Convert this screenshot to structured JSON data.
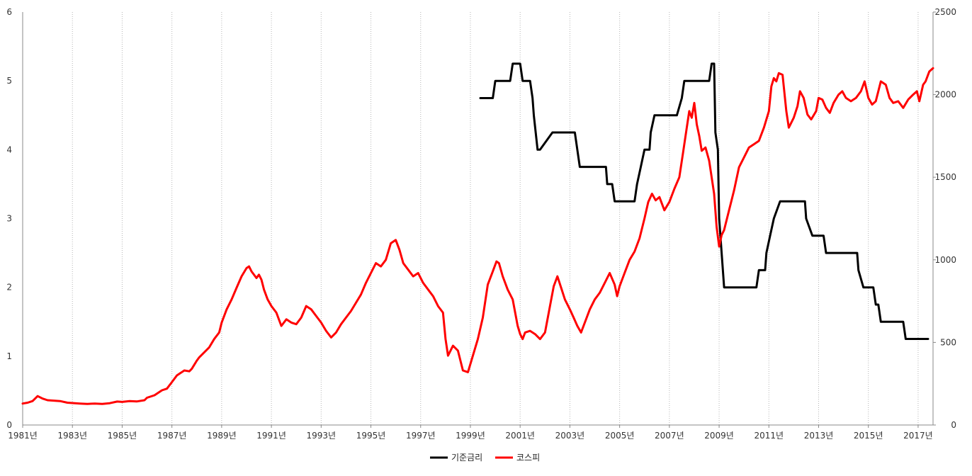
{
  "chart_data": {
    "type": "line",
    "title": "",
    "xlabel": "",
    "ylabel": "",
    "x_ticks": [
      "1981년",
      "1983년",
      "1985년",
      "1987년",
      "1989년",
      "1991년",
      "1993년",
      "1995년",
      "1997년",
      "1999년",
      "2001년",
      "2003년",
      "2005년",
      "2007년",
      "2009년",
      "2011년",
      "2013년",
      "2015년",
      "2017년"
    ],
    "y_left": {
      "min": 0,
      "max": 6,
      "ticks": [
        "0",
        "1",
        "2",
        "3",
        "4",
        "5",
        "6"
      ]
    },
    "y_right": {
      "min": 0,
      "max": 2500,
      "ticks": [
        "0",
        "500",
        "1000",
        "1500",
        "2000",
        "2500"
      ]
    },
    "grid": {
      "vertical": true,
      "horizontal": false
    },
    "legend_position": "bottom-center",
    "series": [
      {
        "name": "기준금리",
        "axis": "left",
        "color": "#000000",
        "step": true,
        "points": [
          [
            1999.4,
            4.75
          ],
          [
            1999.9,
            4.75
          ],
          [
            2000.0,
            5.0
          ],
          [
            2000.6,
            5.0
          ],
          [
            2000.7,
            5.25
          ],
          [
            2001.0,
            5.25
          ],
          [
            2001.1,
            5.0
          ],
          [
            2001.4,
            5.0
          ],
          [
            2001.5,
            4.75
          ],
          [
            2001.55,
            4.5
          ],
          [
            2001.7,
            4.0
          ],
          [
            2001.8,
            4.0
          ],
          [
            2002.3,
            4.25
          ],
          [
            2003.2,
            4.25
          ],
          [
            2003.3,
            4.0
          ],
          [
            2003.4,
            3.75
          ],
          [
            2004.45,
            3.75
          ],
          [
            2004.5,
            3.5
          ],
          [
            2004.7,
            3.5
          ],
          [
            2004.8,
            3.25
          ],
          [
            2005.6,
            3.25
          ],
          [
            2005.7,
            3.5
          ],
          [
            2005.85,
            3.75
          ],
          [
            2006.0,
            4.0
          ],
          [
            2006.2,
            4.0
          ],
          [
            2006.25,
            4.25
          ],
          [
            2006.4,
            4.5
          ],
          [
            2007.3,
            4.5
          ],
          [
            2007.5,
            4.75
          ],
          [
            2007.6,
            5.0
          ],
          [
            2008.6,
            5.0
          ],
          [
            2008.7,
            5.25
          ],
          [
            2008.8,
            5.25
          ],
          [
            2008.85,
            4.25
          ],
          [
            2008.95,
            4.0
          ],
          [
            2009.0,
            3.0
          ],
          [
            2009.1,
            2.5
          ],
          [
            2009.2,
            2.0
          ],
          [
            2010.5,
            2.0
          ],
          [
            2010.6,
            2.25
          ],
          [
            2010.85,
            2.25
          ],
          [
            2010.9,
            2.5
          ],
          [
            2011.05,
            2.75
          ],
          [
            2011.2,
            3.0
          ],
          [
            2011.45,
            3.25
          ],
          [
            2012.45,
            3.25
          ],
          [
            2012.5,
            3.0
          ],
          [
            2012.75,
            2.75
          ],
          [
            2013.2,
            2.75
          ],
          [
            2013.3,
            2.5
          ],
          [
            2014.55,
            2.5
          ],
          [
            2014.6,
            2.25
          ],
          [
            2014.8,
            2.0
          ],
          [
            2015.2,
            2.0
          ],
          [
            2015.3,
            1.75
          ],
          [
            2015.4,
            1.75
          ],
          [
            2015.5,
            1.5
          ],
          [
            2016.4,
            1.5
          ],
          [
            2016.5,
            1.25
          ],
          [
            2017.4,
            1.25
          ]
        ]
      },
      {
        "name": "코스피",
        "axis": "right",
        "color": "#ff0000",
        "step": false,
        "points": [
          [
            1981.0,
            130
          ],
          [
            1981.2,
            135
          ],
          [
            1981.4,
            145
          ],
          [
            1981.6,
            175
          ],
          [
            1981.8,
            160
          ],
          [
            1982.0,
            150
          ],
          [
            1982.2,
            148
          ],
          [
            1982.5,
            145
          ],
          [
            1982.8,
            135
          ],
          [
            1983.0,
            133
          ],
          [
            1983.3,
            130
          ],
          [
            1983.6,
            128
          ],
          [
            1983.9,
            130
          ],
          [
            1984.2,
            128
          ],
          [
            1984.5,
            132
          ],
          [
            1984.8,
            142
          ],
          [
            1985.0,
            140
          ],
          [
            1985.3,
            145
          ],
          [
            1985.6,
            143
          ],
          [
            1985.9,
            150
          ],
          [
            1986.0,
            165
          ],
          [
            1986.3,
            180
          ],
          [
            1986.6,
            210
          ],
          [
            1986.8,
            220
          ],
          [
            1987.0,
            260
          ],
          [
            1987.2,
            300
          ],
          [
            1987.5,
            330
          ],
          [
            1987.7,
            325
          ],
          [
            1987.8,
            340
          ],
          [
            1988.0,
            390
          ],
          [
            1988.1,
            410
          ],
          [
            1988.3,
            440
          ],
          [
            1988.5,
            470
          ],
          [
            1988.7,
            520
          ],
          [
            1988.9,
            560
          ],
          [
            1989.0,
            620
          ],
          [
            1989.2,
            700
          ],
          [
            1989.4,
            760
          ],
          [
            1989.6,
            830
          ],
          [
            1989.8,
            900
          ],
          [
            1990.0,
            950
          ],
          [
            1990.1,
            960
          ],
          [
            1990.2,
            930
          ],
          [
            1990.4,
            890
          ],
          [
            1990.5,
            910
          ],
          [
            1990.6,
            880
          ],
          [
            1990.7,
            820
          ],
          [
            1990.85,
            760
          ],
          [
            1991.0,
            720
          ],
          [
            1991.2,
            680
          ],
          [
            1991.4,
            600
          ],
          [
            1991.6,
            640
          ],
          [
            1991.8,
            620
          ],
          [
            1992.0,
            610
          ],
          [
            1992.2,
            650
          ],
          [
            1992.4,
            720
          ],
          [
            1992.6,
            700
          ],
          [
            1992.8,
            660
          ],
          [
            1993.0,
            620
          ],
          [
            1993.2,
            570
          ],
          [
            1993.4,
            530
          ],
          [
            1993.6,
            560
          ],
          [
            1993.8,
            610
          ],
          [
            1994.0,
            650
          ],
          [
            1994.2,
            690
          ],
          [
            1994.4,
            740
          ],
          [
            1994.6,
            790
          ],
          [
            1994.8,
            860
          ],
          [
            1995.0,
            920
          ],
          [
            1995.2,
            980
          ],
          [
            1995.4,
            960
          ],
          [
            1995.6,
            1000
          ],
          [
            1995.8,
            1100
          ],
          [
            1996.0,
            1120
          ],
          [
            1996.15,
            1060
          ],
          [
            1996.3,
            980
          ],
          [
            1996.5,
            940
          ],
          [
            1996.7,
            900
          ],
          [
            1996.9,
            920
          ],
          [
            1997.1,
            860
          ],
          [
            1997.3,
            820
          ],
          [
            1997.5,
            780
          ],
          [
            1997.7,
            720
          ],
          [
            1997.9,
            680
          ],
          [
            1998.0,
            520
          ],
          [
            1998.1,
            420
          ],
          [
            1998.3,
            480
          ],
          [
            1998.5,
            450
          ],
          [
            1998.7,
            330
          ],
          [
            1998.9,
            320
          ],
          [
            1999.1,
            420
          ],
          [
            1999.3,
            520
          ],
          [
            1999.5,
            650
          ],
          [
            1999.7,
            850
          ],
          [
            1999.9,
            930
          ],
          [
            2000.05,
            990
          ],
          [
            2000.15,
            980
          ],
          [
            2000.3,
            900
          ],
          [
            2000.5,
            820
          ],
          [
            2000.7,
            760
          ],
          [
            2000.9,
            600
          ],
          [
            2001.0,
            550
          ],
          [
            2001.1,
            520
          ],
          [
            2001.2,
            560
          ],
          [
            2001.4,
            570
          ],
          [
            2001.6,
            550
          ],
          [
            2001.8,
            520
          ],
          [
            2002.0,
            560
          ],
          [
            2002.1,
            640
          ],
          [
            2002.2,
            720
          ],
          [
            2002.35,
            840
          ],
          [
            2002.5,
            900
          ],
          [
            2002.65,
            830
          ],
          [
            2002.8,
            760
          ],
          [
            2003.0,
            700
          ],
          [
            2003.15,
            650
          ],
          [
            2003.3,
            600
          ],
          [
            2003.45,
            560
          ],
          [
            2003.6,
            620
          ],
          [
            2003.8,
            700
          ],
          [
            2004.0,
            760
          ],
          [
            2004.2,
            800
          ],
          [
            2004.4,
            860
          ],
          [
            2004.6,
            920
          ],
          [
            2004.8,
            850
          ],
          [
            2004.9,
            780
          ],
          [
            2005.0,
            840
          ],
          [
            2005.2,
            920
          ],
          [
            2005.4,
            1000
          ],
          [
            2005.6,
            1050
          ],
          [
            2005.8,
            1130
          ],
          [
            2006.0,
            1250
          ],
          [
            2006.15,
            1350
          ],
          [
            2006.3,
            1400
          ],
          [
            2006.45,
            1360
          ],
          [
            2006.6,
            1380
          ],
          [
            2006.8,
            1300
          ],
          [
            2007.0,
            1350
          ],
          [
            2007.2,
            1430
          ],
          [
            2007.4,
            1500
          ],
          [
            2007.55,
            1650
          ],
          [
            2007.7,
            1800
          ],
          [
            2007.8,
            1900
          ],
          [
            2007.9,
            1860
          ],
          [
            2008.0,
            1950
          ],
          [
            2008.1,
            1820
          ],
          [
            2008.2,
            1750
          ],
          [
            2008.3,
            1660
          ],
          [
            2008.45,
            1680
          ],
          [
            2008.6,
            1600
          ],
          [
            2008.7,
            1500
          ],
          [
            2008.8,
            1400
          ],
          [
            2008.9,
            1200
          ],
          [
            2009.0,
            1080
          ],
          [
            2009.1,
            1150
          ],
          [
            2009.2,
            1180
          ],
          [
            2009.4,
            1300
          ],
          [
            2009.6,
            1420
          ],
          [
            2009.8,
            1560
          ],
          [
            2010.0,
            1620
          ],
          [
            2010.2,
            1680
          ],
          [
            2010.4,
            1700
          ],
          [
            2010.6,
            1720
          ],
          [
            2010.8,
            1800
          ],
          [
            2011.0,
            1900
          ],
          [
            2011.1,
            2050
          ],
          [
            2011.2,
            2100
          ],
          [
            2011.3,
            2080
          ],
          [
            2011.4,
            2130
          ],
          [
            2011.55,
            2120
          ],
          [
            2011.7,
            1900
          ],
          [
            2011.8,
            1800
          ],
          [
            2011.9,
            1830
          ],
          [
            2012.0,
            1860
          ],
          [
            2012.15,
            1930
          ],
          [
            2012.25,
            2020
          ],
          [
            2012.4,
            1980
          ],
          [
            2012.55,
            1880
          ],
          [
            2012.7,
            1850
          ],
          [
            2012.9,
            1900
          ],
          [
            2013.0,
            1980
          ],
          [
            2013.15,
            1970
          ],
          [
            2013.3,
            1920
          ],
          [
            2013.45,
            1890
          ],
          [
            2013.6,
            1950
          ],
          [
            2013.8,
            2000
          ],
          [
            2013.95,
            2020
          ],
          [
            2014.1,
            1980
          ],
          [
            2014.3,
            1960
          ],
          [
            2014.5,
            1980
          ],
          [
            2014.7,
            2020
          ],
          [
            2014.85,
            2080
          ],
          [
            2015.0,
            1980
          ],
          [
            2015.15,
            1940
          ],
          [
            2015.3,
            1960
          ],
          [
            2015.5,
            2080
          ],
          [
            2015.7,
            2060
          ],
          [
            2015.85,
            1980
          ],
          [
            2016.0,
            1950
          ],
          [
            2016.2,
            1960
          ],
          [
            2016.4,
            1920
          ],
          [
            2016.6,
            1970
          ],
          [
            2016.8,
            2000
          ],
          [
            2016.95,
            2020
          ],
          [
            2017.05,
            1960
          ],
          [
            2017.2,
            2060
          ],
          [
            2017.3,
            2080
          ],
          [
            2017.45,
            2140
          ],
          [
            2017.6,
            2160
          ]
        ]
      }
    ]
  }
}
